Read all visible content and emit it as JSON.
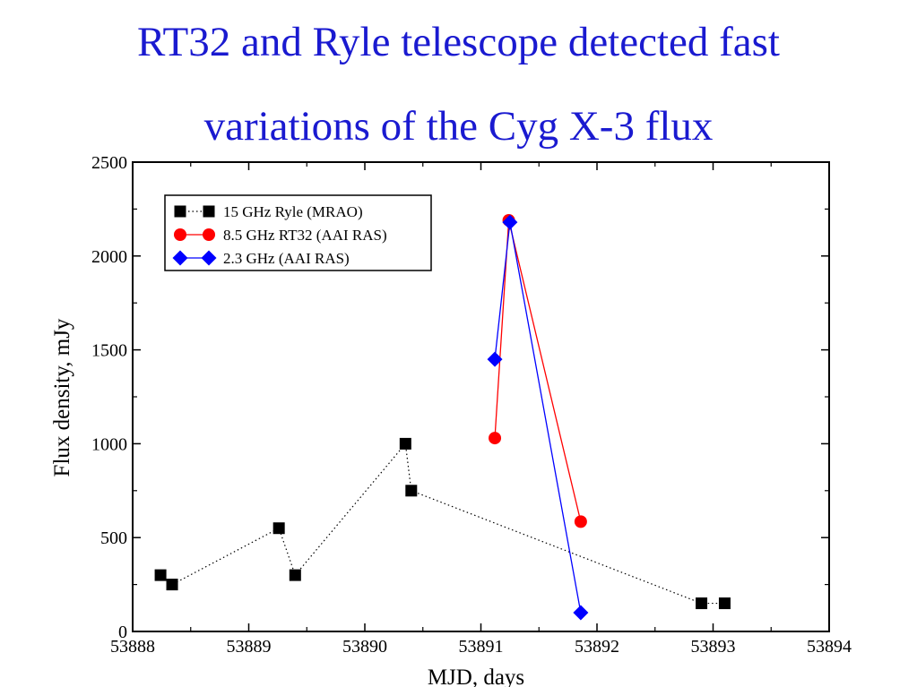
{
  "title_lines": [
    "RT32 and Ryle telescope detected  fast",
    "variations of the Cyg X-3 flux"
  ],
  "colors": {
    "title": "#1a1ad0",
    "ryle": "#000000",
    "rt32": "#ff0000",
    "ghz23": "#0000ff"
  },
  "chart_data": {
    "type": "line",
    "xlabel": "MJD, days",
    "ylabel": "Flux density, mJy",
    "xlim": [
      53888,
      53894
    ],
    "ylim": [
      0,
      2500
    ],
    "xticks": [
      53888,
      53889,
      53890,
      53891,
      53892,
      53893,
      53894
    ],
    "yticks": [
      0,
      500,
      1000,
      1500,
      2000,
      2500
    ],
    "grid": false,
    "legend_position": "top-left",
    "series": [
      {
        "name": "15 GHz Ryle  (MRAO)",
        "color": "#000000",
        "marker": "square",
        "line": "dotted",
        "x": [
          53888.24,
          53888.34,
          53889.26,
          53889.4,
          53890.35,
          53890.4,
          53892.9,
          53893.1
        ],
        "y": [
          300,
          250,
          550,
          300,
          1000,
          750,
          150,
          150
        ]
      },
      {
        "name": "8.5 GHz RT32 (AAI RAS)",
        "color": "#ff0000",
        "marker": "circle",
        "line": "solid",
        "x": [
          53891.12,
          53891.24,
          53891.86
        ],
        "y": [
          1030,
          2190,
          585
        ]
      },
      {
        "name": "2.3 GHz (AAI RAS)",
        "color": "#0000ff",
        "marker": "diamond",
        "line": "solid",
        "x": [
          53891.12,
          53891.25,
          53891.86
        ],
        "y": [
          1450,
          2180,
          100
        ]
      }
    ]
  }
}
